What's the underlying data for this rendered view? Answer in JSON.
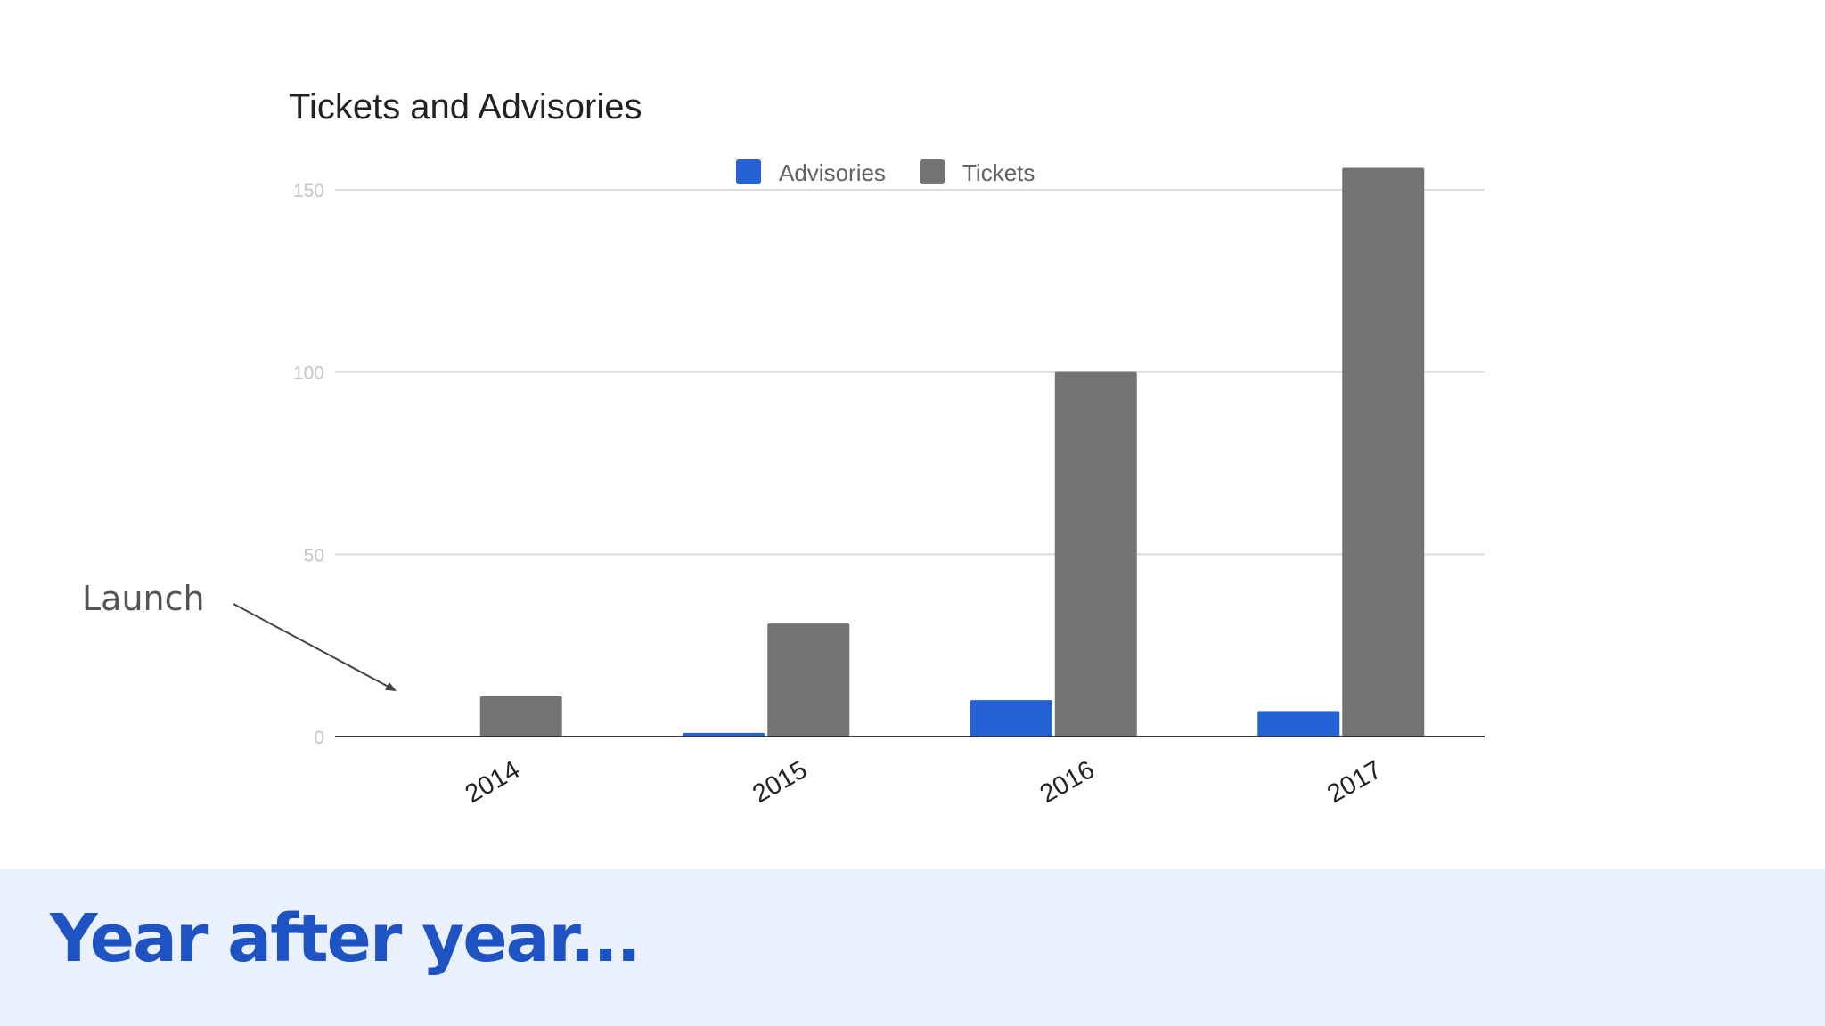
{
  "chart_data": {
    "type": "bar",
    "title": "Tickets and Advisories",
    "categories": [
      "2014",
      "2015",
      "2016",
      "2017"
    ],
    "series": [
      {
        "name": "Advisories",
        "color": "#2563d4",
        "values": [
          0,
          1,
          10,
          7
        ]
      },
      {
        "name": "Tickets",
        "color": "#737373",
        "values": [
          11,
          31,
          100,
          156
        ]
      }
    ],
    "yticks": [
      0,
      50,
      100,
      150
    ],
    "ylim": [
      0,
      150
    ],
    "xlabel": "",
    "ylabel": "",
    "grid": true,
    "legend_position": "top-center",
    "annotation": {
      "text": "Launch",
      "target_category": "2014"
    }
  },
  "footer": {
    "caption": "Year after year..."
  }
}
